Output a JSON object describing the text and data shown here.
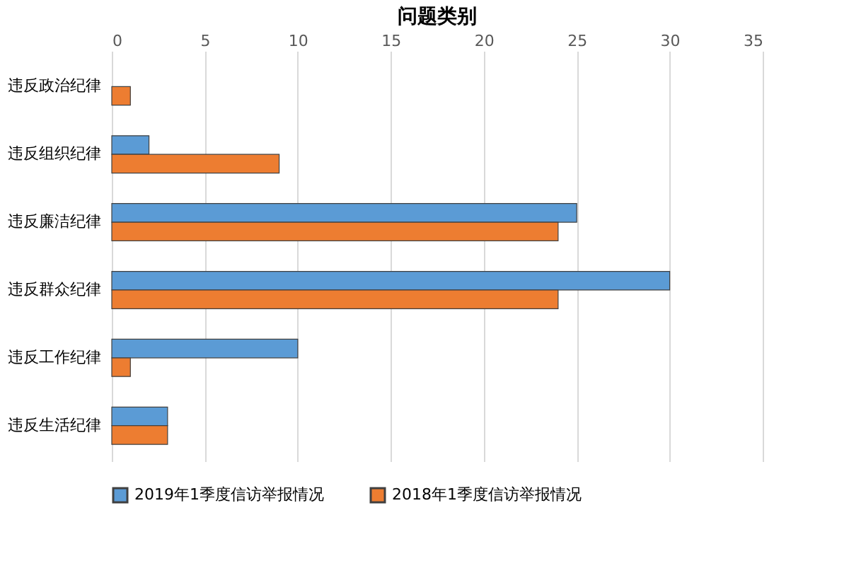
{
  "chart_data": {
    "type": "bar",
    "orientation": "horizontal",
    "title": "问题类别",
    "categories": [
      "违反政治纪律",
      "违反组织纪律",
      "违反廉洁纪律",
      "违反群众纪律",
      "违反工作纪律",
      "违反生活纪律"
    ],
    "series": [
      {
        "name": "2019年1季度信访举报情况",
        "color": "#5b9bd5",
        "values": [
          null,
          2,
          25,
          30,
          10,
          3
        ]
      },
      {
        "name": "2018年1季度信访举报情况",
        "color": "#ed7d31",
        "values": [
          1,
          9,
          24,
          24,
          1,
          3
        ]
      }
    ],
    "xlim": [
      0,
      35
    ],
    "xticks": [
      0,
      5,
      10,
      15,
      20,
      25,
      30,
      35
    ],
    "grid": "x",
    "legend": "bottom"
  }
}
